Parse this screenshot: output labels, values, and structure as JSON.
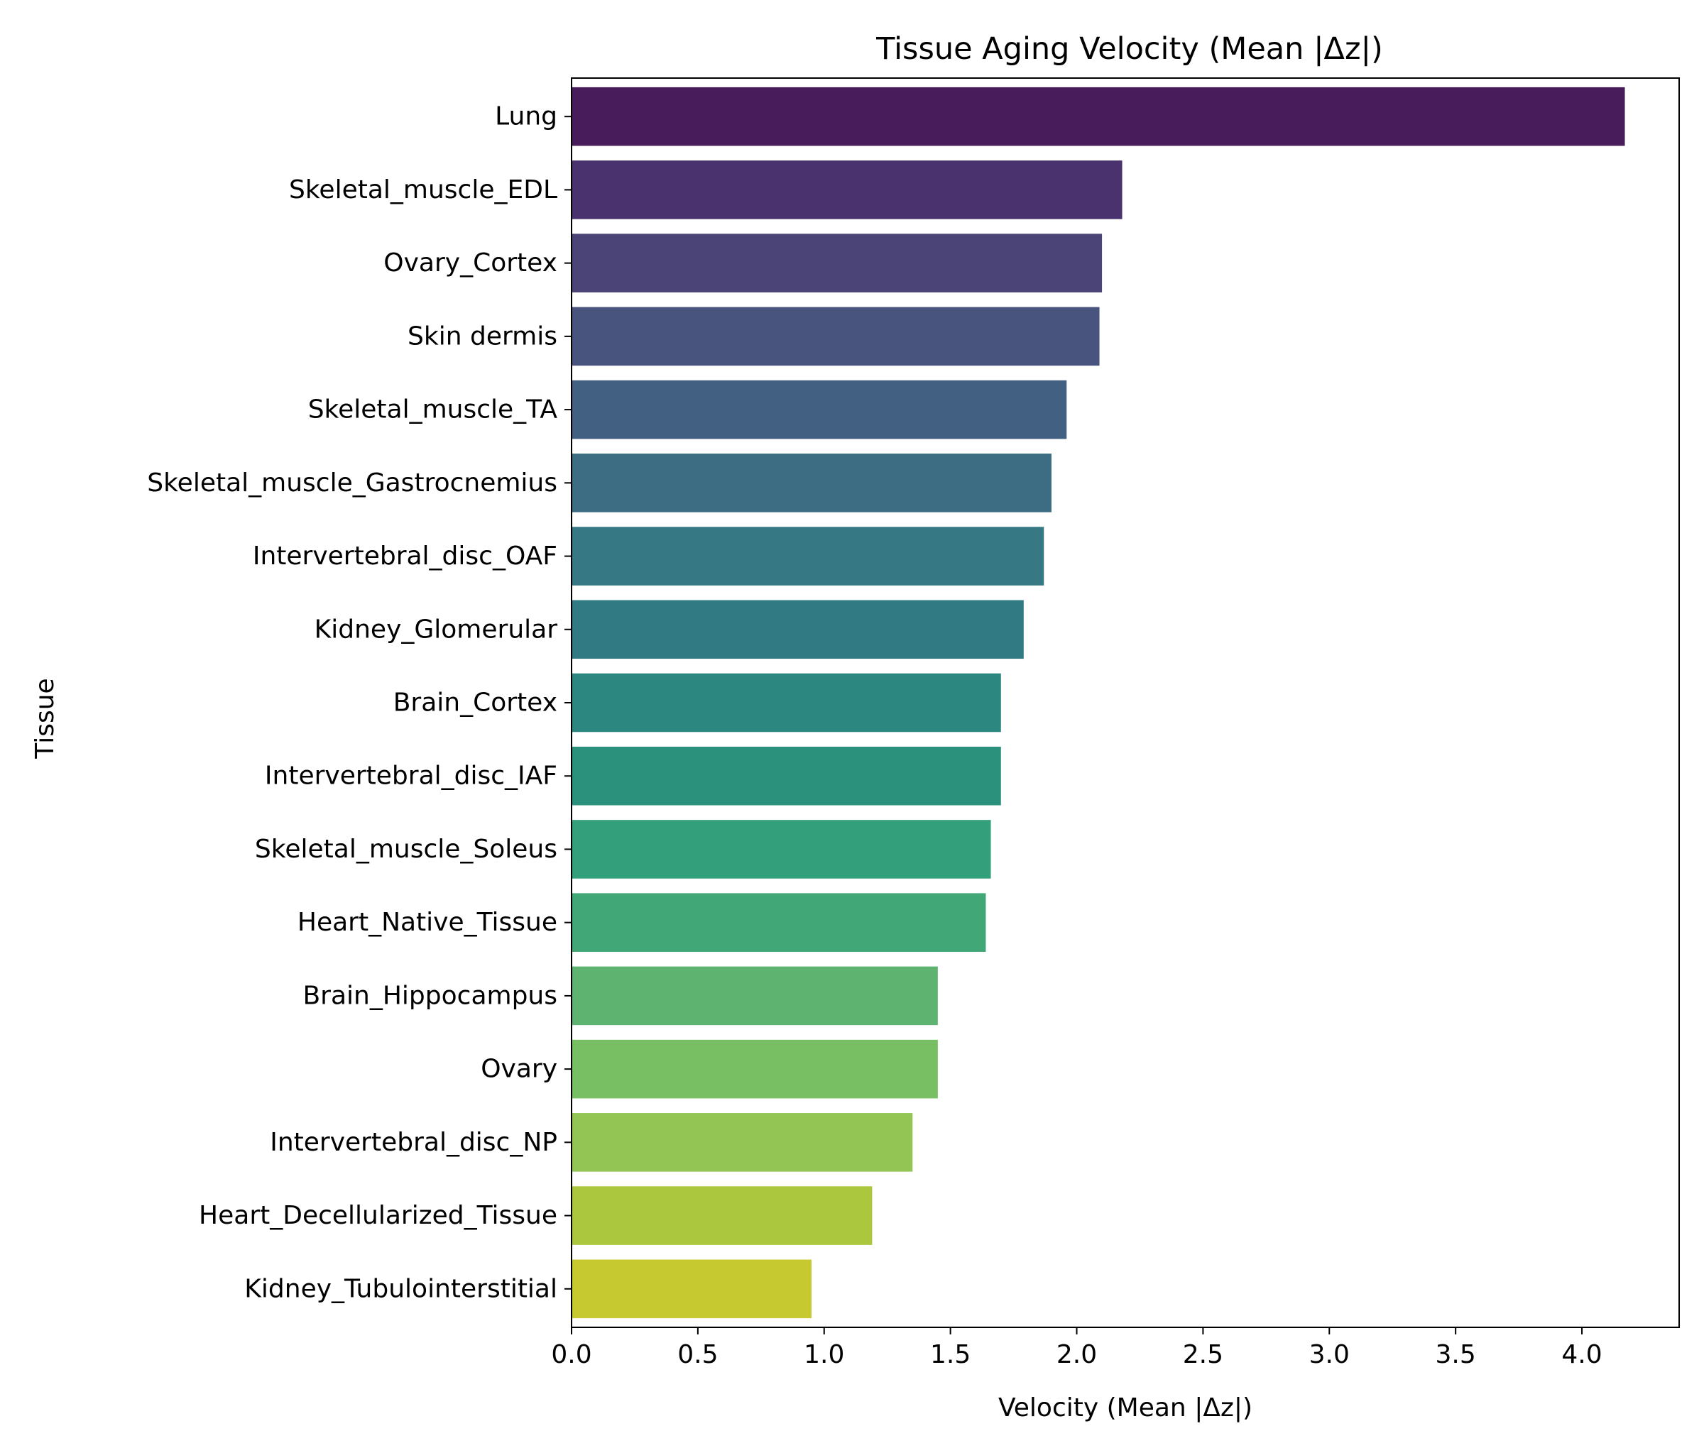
{
  "chart_data": {
    "type": "bar",
    "orientation": "horizontal",
    "title": "Tissue Aging Velocity (Mean |Δz|)",
    "xlabel": "Velocity (Mean |Δz|)",
    "ylabel": "Tissue",
    "xlim": [
      0,
      4.385
    ],
    "xticks": [
      "0.0",
      "0.5",
      "1.0",
      "1.5",
      "2.0",
      "2.5",
      "3.0",
      "3.5",
      "4.0"
    ],
    "grid": false,
    "colormap": "viridis",
    "categories": [
      "Lung",
      "Skeletal_muscle_EDL",
      "Ovary_Cortex",
      "Skin dermis",
      "Skeletal_muscle_TA",
      "Skeletal_muscle_Gastrocnemius",
      "Intervertebral_disc_OAF",
      "Kidney_Glomerular",
      "Brain_Cortex",
      "Intervertebral_disc_IAF",
      "Skeletal_muscle_Soleus",
      "Heart_Native_Tissue",
      "Brain_Hippocampus",
      "Ovary",
      "Intervertebral_disc_NP",
      "Heart_Decellularized_Tissue",
      "Kidney_Tubulointerstitial"
    ],
    "values": [
      4.17,
      2.18,
      2.1,
      2.09,
      1.96,
      1.9,
      1.87,
      1.79,
      1.7,
      1.7,
      1.66,
      1.64,
      1.45,
      1.45,
      1.35,
      1.19,
      0.95
    ],
    "colors": [
      "#481c5a",
      "#4a326f",
      "#4b4477",
      "#48537e",
      "#426082",
      "#3c6d83",
      "#367883",
      "#317983",
      "#2c8780",
      "#2b907c",
      "#34a07b",
      "#42a777",
      "#5eb371",
      "#77bf62",
      "#92c553",
      "#abc73d",
      "#c6ca30"
    ]
  }
}
